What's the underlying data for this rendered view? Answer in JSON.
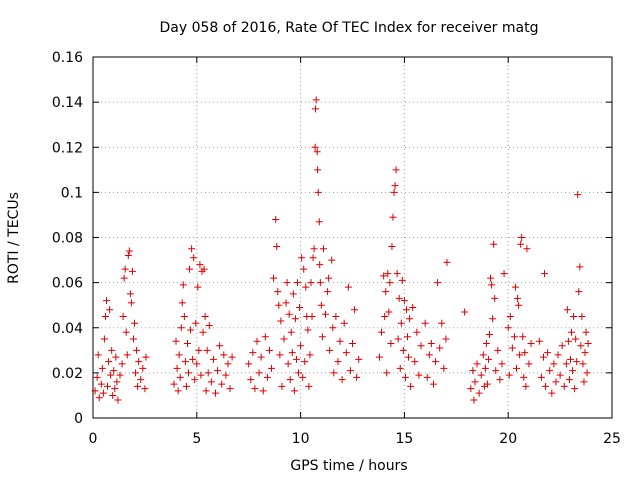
{
  "chart_data": {
    "type": "scatter",
    "title": "Day 058 of 2016, Rate Of TEC Index for receiver matg",
    "xlabel": "GPS time / hours",
    "ylabel": "ROTI / TECUs",
    "xlim": [
      0,
      25
    ],
    "ylim": [
      0,
      0.16
    ],
    "xticks": [
      0,
      5,
      10,
      15,
      20,
      25
    ],
    "xtick_labels": [
      "0",
      "5",
      "10",
      "15",
      "20",
      "25"
    ],
    "yticks": [
      0,
      0.02,
      0.04,
      0.06,
      0.08,
      0.1,
      0.12,
      0.14,
      0.16
    ],
    "ytick_labels": [
      "0",
      "0.02",
      "0.04",
      "0.06",
      "0.08",
      "0.1",
      "0.12",
      "0.14",
      "0.16"
    ],
    "grid": true,
    "marker": "plus",
    "point_color": "#dd0000",
    "series": [
      {
        "name": "ROTI",
        "points": [
          [
            0.1,
            0.012
          ],
          [
            0.2,
            0.018
          ],
          [
            0.25,
            0.028
          ],
          [
            0.3,
            0.009
          ],
          [
            0.4,
            0.015
          ],
          [
            0.45,
            0.022
          ],
          [
            0.5,
            0.011
          ],
          [
            0.55,
            0.035
          ],
          [
            0.6,
            0.045
          ],
          [
            0.65,
            0.052
          ],
          [
            0.7,
            0.014
          ],
          [
            0.75,
            0.025
          ],
          [
            0.8,
            0.048
          ],
          [
            0.85,
            0.019
          ],
          [
            0.9,
            0.03
          ],
          [
            0.95,
            0.01
          ],
          [
            1.0,
            0.021
          ],
          [
            1.05,
            0.013
          ],
          [
            1.1,
            0.027
          ],
          [
            1.15,
            0.016
          ],
          [
            1.2,
            0.008
          ],
          [
            1.3,
            0.019
          ],
          [
            1.4,
            0.024
          ],
          [
            1.45,
            0.045
          ],
          [
            1.5,
            0.062
          ],
          [
            1.55,
            0.066
          ],
          [
            1.6,
            0.038
          ],
          [
            1.65,
            0.028
          ],
          [
            1.7,
            0.072
          ],
          [
            1.75,
            0.074
          ],
          [
            1.8,
            0.055
          ],
          [
            1.85,
            0.051
          ],
          [
            1.9,
            0.065
          ],
          [
            1.95,
            0.035
          ],
          [
            2.0,
            0.042
          ],
          [
            2.05,
            0.02
          ],
          [
            2.1,
            0.03
          ],
          [
            2.15,
            0.014
          ],
          [
            2.2,
            0.025
          ],
          [
            2.3,
            0.017
          ],
          [
            2.4,
            0.022
          ],
          [
            2.5,
            0.013
          ],
          [
            2.55,
            0.027
          ],
          [
            3.9,
            0.015
          ],
          [
            4.0,
            0.034
          ],
          [
            4.05,
            0.022
          ],
          [
            4.1,
            0.012
          ],
          [
            4.15,
            0.028
          ],
          [
            4.2,
            0.018
          ],
          [
            4.25,
            0.04
          ],
          [
            4.3,
            0.051
          ],
          [
            4.35,
            0.059
          ],
          [
            4.4,
            0.045
          ],
          [
            4.45,
            0.025
          ],
          [
            4.5,
            0.014
          ],
          [
            4.55,
            0.033
          ],
          [
            4.6,
            0.02
          ],
          [
            4.65,
            0.066
          ],
          [
            4.7,
            0.039
          ],
          [
            4.75,
            0.075
          ],
          [
            4.8,
            0.026
          ],
          [
            4.85,
            0.071
          ],
          [
            4.9,
            0.017
          ],
          [
            4.95,
            0.042
          ],
          [
            5.0,
            0.024
          ],
          [
            5.05,
            0.058
          ],
          [
            5.1,
            0.03
          ],
          [
            5.15,
            0.068
          ],
          [
            5.2,
            0.019
          ],
          [
            5.25,
            0.065
          ],
          [
            5.3,
            0.038
          ],
          [
            5.35,
            0.066
          ],
          [
            5.4,
            0.045
          ],
          [
            5.45,
            0.012
          ],
          [
            5.5,
            0.03
          ],
          [
            5.55,
            0.02
          ],
          [
            5.6,
            0.041
          ],
          [
            5.7,
            0.016
          ],
          [
            5.8,
            0.026
          ],
          [
            5.9,
            0.011
          ],
          [
            6.0,
            0.021
          ],
          [
            6.1,
            0.032
          ],
          [
            6.2,
            0.015
          ],
          [
            6.3,
            0.028
          ],
          [
            6.4,
            0.019
          ],
          [
            6.5,
            0.024
          ],
          [
            6.6,
            0.013
          ],
          [
            6.7,
            0.027
          ],
          [
            7.5,
            0.024
          ],
          [
            7.6,
            0.017
          ],
          [
            7.7,
            0.029
          ],
          [
            7.8,
            0.013
          ],
          [
            7.9,
            0.034
          ],
          [
            8.0,
            0.02
          ],
          [
            8.1,
            0.027
          ],
          [
            8.2,
            0.012
          ],
          [
            8.3,
            0.036
          ],
          [
            8.4,
            0.018
          ],
          [
            8.5,
            0.03
          ],
          [
            8.6,
            0.022
          ],
          [
            8.7,
            0.062
          ],
          [
            8.8,
            0.088
          ],
          [
            8.85,
            0.076
          ],
          [
            8.9,
            0.056
          ],
          [
            8.95,
            0.05
          ],
          [
            9.0,
            0.028
          ],
          [
            9.05,
            0.043
          ],
          [
            9.1,
            0.014
          ],
          [
            9.2,
            0.035
          ],
          [
            9.3,
            0.051
          ],
          [
            9.35,
            0.06
          ],
          [
            9.4,
            0.024
          ],
          [
            9.45,
            0.046
          ],
          [
            9.5,
            0.017
          ],
          [
            9.55,
            0.038
          ],
          [
            9.6,
            0.029
          ],
          [
            9.65,
            0.055
          ],
          [
            9.7,
            0.012
          ],
          [
            9.75,
            0.044
          ],
          [
            9.8,
            0.026
          ],
          [
            9.85,
            0.06
          ],
          [
            9.9,
            0.02
          ],
          [
            9.95,
            0.049
          ],
          [
            10.0,
            0.032
          ],
          [
            10.05,
            0.071
          ],
          [
            10.1,
            0.018
          ],
          [
            10.15,
            0.066
          ],
          [
            10.2,
            0.025
          ],
          [
            10.25,
            0.058
          ],
          [
            10.3,
            0.045
          ],
          [
            10.35,
            0.039
          ],
          [
            10.4,
            0.014
          ],
          [
            10.45,
            0.028
          ],
          [
            10.5,
            0.06
          ],
          [
            10.55,
            0.045
          ],
          [
            10.6,
            0.071
          ],
          [
            10.65,
            0.075
          ],
          [
            10.7,
            0.12
          ],
          [
            10.72,
            0.137
          ],
          [
            10.75,
            0.141
          ],
          [
            10.8,
            0.118
          ],
          [
            10.82,
            0.11
          ],
          [
            10.85,
            0.1
          ],
          [
            10.9,
            0.087
          ],
          [
            10.92,
            0.068
          ],
          [
            10.95,
            0.06
          ],
          [
            11.0,
            0.05
          ],
          [
            11.05,
            0.036
          ],
          [
            11.1,
            0.075
          ],
          [
            11.2,
            0.046
          ],
          [
            11.3,
            0.056
          ],
          [
            11.35,
            0.062
          ],
          [
            11.4,
            0.03
          ],
          [
            11.5,
            0.07
          ],
          [
            11.55,
            0.04
          ],
          [
            11.6,
            0.02
          ],
          [
            11.7,
            0.045
          ],
          [
            11.8,
            0.025
          ],
          [
            11.9,
            0.034
          ],
          [
            12.0,
            0.017
          ],
          [
            12.1,
            0.042
          ],
          [
            12.2,
            0.029
          ],
          [
            12.3,
            0.058
          ],
          [
            12.4,
            0.021
          ],
          [
            12.5,
            0.033
          ],
          [
            12.6,
            0.048
          ],
          [
            12.7,
            0.018
          ],
          [
            12.8,
            0.026
          ],
          [
            13.8,
            0.027
          ],
          [
            13.9,
            0.038
          ],
          [
            14.0,
            0.063
          ],
          [
            14.05,
            0.045
          ],
          [
            14.1,
            0.056
          ],
          [
            14.15,
            0.02
          ],
          [
            14.2,
            0.064
          ],
          [
            14.25,
            0.047
          ],
          [
            14.3,
            0.06
          ],
          [
            14.35,
            0.033
          ],
          [
            14.4,
            0.076
          ],
          [
            14.45,
            0.089
          ],
          [
            14.5,
            0.1
          ],
          [
            14.55,
            0.103
          ],
          [
            14.6,
            0.11
          ],
          [
            14.65,
            0.064
          ],
          [
            14.7,
            0.035
          ],
          [
            14.75,
            0.053
          ],
          [
            14.8,
            0.022
          ],
          [
            14.85,
            0.042
          ],
          [
            14.9,
            0.061
          ],
          [
            14.95,
            0.03
          ],
          [
            15.0,
            0.052
          ],
          [
            15.05,
            0.018
          ],
          [
            15.1,
            0.048
          ],
          [
            15.15,
            0.036
          ],
          [
            15.2,
            0.027
          ],
          [
            15.25,
            0.044
          ],
          [
            15.3,
            0.014
          ],
          [
            15.4,
            0.049
          ],
          [
            15.5,
            0.025
          ],
          [
            15.6,
            0.038
          ],
          [
            15.7,
            0.019
          ],
          [
            15.8,
            0.032
          ],
          [
            16.0,
            0.042
          ],
          [
            16.1,
            0.018
          ],
          [
            16.2,
            0.028
          ],
          [
            16.3,
            0.033
          ],
          [
            16.4,
            0.015
          ],
          [
            16.5,
            0.025
          ],
          [
            16.6,
            0.06
          ],
          [
            16.7,
            0.031
          ],
          [
            16.8,
            0.042
          ],
          [
            16.9,
            0.022
          ],
          [
            17.0,
            0.035
          ],
          [
            17.05,
            0.069
          ],
          [
            17.9,
            0.047
          ],
          [
            18.2,
            0.013
          ],
          [
            18.3,
            0.021
          ],
          [
            18.35,
            0.008
          ],
          [
            18.4,
            0.016
          ],
          [
            18.5,
            0.024
          ],
          [
            18.6,
            0.011
          ],
          [
            18.7,
            0.019
          ],
          [
            18.8,
            0.028
          ],
          [
            18.85,
            0.014
          ],
          [
            18.9,
            0.022
          ],
          [
            18.95,
            0.033
          ],
          [
            19.0,
            0.015
          ],
          [
            19.05,
            0.026
          ],
          [
            19.1,
            0.037
          ],
          [
            19.15,
            0.062
          ],
          [
            19.2,
            0.059
          ],
          [
            19.25,
            0.044
          ],
          [
            19.3,
            0.077
          ],
          [
            19.35,
            0.053
          ],
          [
            19.4,
            0.021
          ],
          [
            19.5,
            0.03
          ],
          [
            19.6,
            0.017
          ],
          [
            19.7,
            0.024
          ],
          [
            19.8,
            0.064
          ],
          [
            20.0,
            0.04
          ],
          [
            20.05,
            0.019
          ],
          [
            20.1,
            0.045
          ],
          [
            20.2,
            0.031
          ],
          [
            20.3,
            0.036
          ],
          [
            20.35,
            0.058
          ],
          [
            20.4,
            0.022
          ],
          [
            20.45,
            0.053
          ],
          [
            20.5,
            0.05
          ],
          [
            20.55,
            0.028
          ],
          [
            20.6,
            0.077
          ],
          [
            20.65,
            0.08
          ],
          [
            20.7,
            0.036
          ],
          [
            20.75,
            0.018
          ],
          [
            20.8,
            0.029
          ],
          [
            20.85,
            0.014
          ],
          [
            20.9,
            0.075
          ],
          [
            21.0,
            0.024
          ],
          [
            21.1,
            0.033
          ],
          [
            21.5,
            0.034
          ],
          [
            21.6,
            0.018
          ],
          [
            21.7,
            0.027
          ],
          [
            21.75,
            0.064
          ],
          [
            21.8,
            0.014
          ],
          [
            21.9,
            0.029
          ],
          [
            22.0,
            0.021
          ],
          [
            22.1,
            0.011
          ],
          [
            22.2,
            0.024
          ],
          [
            22.3,
            0.016
          ],
          [
            22.4,
            0.028
          ],
          [
            22.5,
            0.019
          ],
          [
            22.6,
            0.032
          ],
          [
            22.7,
            0.014
          ],
          [
            22.8,
            0.024
          ],
          [
            22.85,
            0.048
          ],
          [
            22.9,
            0.034
          ],
          [
            22.95,
            0.017
          ],
          [
            23.0,
            0.026
          ],
          [
            23.05,
            0.038
          ],
          [
            23.1,
            0.021
          ],
          [
            23.15,
            0.045
          ],
          [
            23.2,
            0.013
          ],
          [
            23.25,
            0.035
          ],
          [
            23.3,
            0.025
          ],
          [
            23.35,
            0.099
          ],
          [
            23.4,
            0.056
          ],
          [
            23.45,
            0.067
          ],
          [
            23.5,
            0.032
          ],
          [
            23.55,
            0.045
          ],
          [
            23.6,
            0.024
          ],
          [
            23.65,
            0.016
          ],
          [
            23.7,
            0.029
          ],
          [
            23.75,
            0.038
          ],
          [
            23.8,
            0.02
          ],
          [
            23.85,
            0.033
          ]
        ]
      }
    ]
  }
}
